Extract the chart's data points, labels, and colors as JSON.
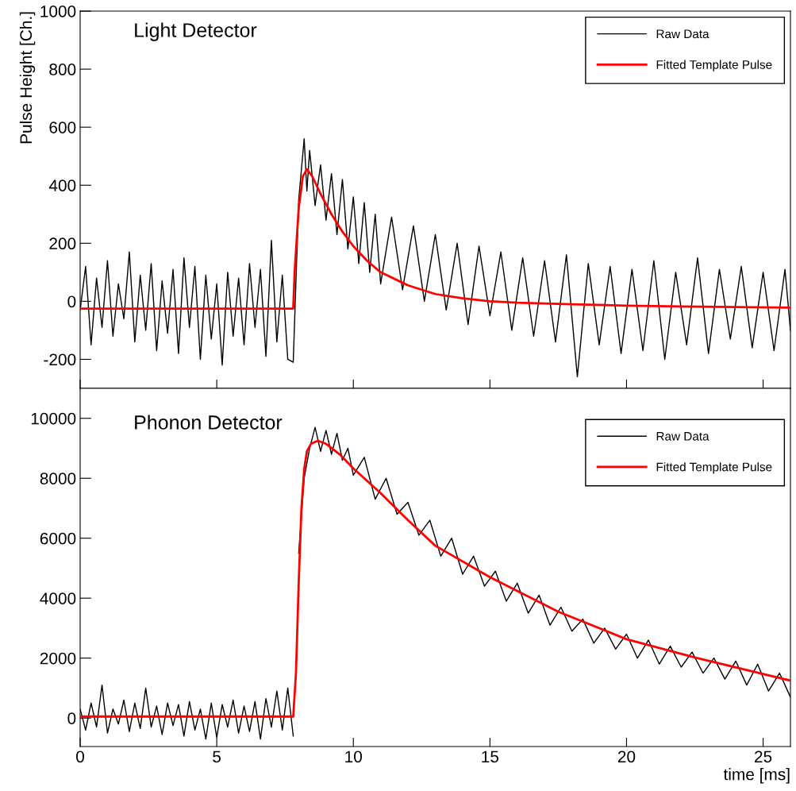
{
  "chart_data": [
    {
      "type": "line",
      "title": "Light Detector",
      "ylabel": "Pulse Height [Ch.]",
      "xlim": [
        0,
        26
      ],
      "xticks": [
        0,
        5,
        10,
        15,
        20,
        25
      ],
      "ylim": [
        -300,
        1000
      ],
      "yticks": [
        -200,
        0,
        200,
        400,
        600,
        800,
        1000
      ],
      "tick_labels": "y",
      "legend": "top right",
      "grid": false,
      "series": [
        {
          "name": "Raw Data",
          "color": "#000000",
          "x": [
            0,
            0.2,
            0.4,
            0.6,
            0.8,
            1.0,
            1.2,
            1.4,
            1.6,
            1.8,
            2.0,
            2.2,
            2.4,
            2.6,
            2.8,
            3.0,
            3.2,
            3.4,
            3.6,
            3.8,
            4.0,
            4.2,
            4.4,
            4.6,
            4.8,
            5.0,
            5.2,
            5.4,
            5.6,
            5.8,
            6.0,
            6.2,
            6.4,
            6.6,
            6.8,
            7.0,
            7.2,
            7.4,
            7.6,
            7.8,
            8.0,
            8.2,
            8.3,
            8.4,
            8.6,
            8.8,
            9.0,
            9.2,
            9.4,
            9.6,
            9.8,
            10.0,
            10.2,
            10.4,
            10.6,
            10.8,
            11.0,
            11.4,
            11.8,
            12.2,
            12.6,
            13.0,
            13.4,
            13.8,
            14.2,
            14.6,
            15.0,
            15.4,
            15.8,
            16.2,
            16.6,
            17.0,
            17.4,
            17.8,
            18.2,
            18.6,
            19.0,
            19.4,
            19.8,
            20.2,
            20.6,
            21.0,
            21.4,
            21.8,
            22.2,
            22.6,
            23.0,
            23.4,
            23.8,
            24.2,
            24.6,
            25.0,
            25.4,
            25.8,
            26.0
          ],
          "values": [
            -30,
            120,
            -150,
            80,
            -90,
            140,
            -120,
            60,
            -60,
            170,
            -140,
            90,
            -100,
            130,
            -170,
            70,
            -110,
            110,
            -180,
            150,
            -90,
            120,
            -200,
            90,
            -130,
            60,
            -220,
            100,
            -120,
            80,
            -150,
            130,
            -90,
            110,
            -190,
            210,
            -140,
            90,
            -200,
            -210,
            350,
            560,
            380,
            520,
            330,
            470,
            280,
            440,
            230,
            420,
            180,
            360,
            130,
            340,
            100,
            300,
            60,
            290,
            40,
            260,
            0,
            230,
            -30,
            200,
            -80,
            190,
            -50,
            170,
            -100,
            150,
            -120,
            140,
            -140,
            160,
            -260,
            130,
            -150,
            120,
            -180,
            110,
            -170,
            140,
            -200,
            100,
            -150,
            150,
            -180,
            110,
            -130,
            120,
            -160,
            100,
            -170,
            110,
            -100
          ]
        },
        {
          "name": "Fitted Template Pulse",
          "color": "#ff0000",
          "x": [
            0,
            7.8,
            7.85,
            8.0,
            8.15,
            8.3,
            8.5,
            8.8,
            9.2,
            9.6,
            10,
            10.5,
            11,
            12,
            13,
            14,
            15,
            16,
            18,
            20,
            22,
            24,
            26
          ],
          "values": [
            -25,
            -25,
            100,
            320,
            430,
            455,
            430,
            370,
            300,
            240,
            190,
            140,
            100,
            55,
            25,
            10,
            0,
            -5,
            -10,
            -15,
            -18,
            -20,
            -22
          ]
        }
      ]
    },
    {
      "type": "line",
      "title": "Phonon Detector",
      "xlabel": "time [ms]",
      "xlim": [
        0,
        26
      ],
      "xticks": [
        0,
        5,
        10,
        15,
        20,
        25
      ],
      "ylim": [
        -950,
        11000
      ],
      "yticks": [
        0,
        2000,
        4000,
        6000,
        8000,
        10000
      ],
      "legend": "top right",
      "grid": false,
      "series": [
        {
          "name": "Raw Data",
          "color": "#000000",
          "x": [
            0,
            0.2,
            0.4,
            0.6,
            0.8,
            1.0,
            1.2,
            1.4,
            1.6,
            1.8,
            2.0,
            2.2,
            2.4,
            2.6,
            2.8,
            3.0,
            3.2,
            3.4,
            3.6,
            3.8,
            4.0,
            4.2,
            4.4,
            4.6,
            4.8,
            5.0,
            5.2,
            5.4,
            5.6,
            5.8,
            6.0,
            6.2,
            6.4,
            6.6,
            6.8,
            7.0,
            7.2,
            7.4,
            7.6,
            7.8,
            7.9,
            8.0,
            8.2,
            8.4,
            8.6,
            8.8,
            9.0,
            9.2,
            9.4,
            9.6,
            9.8,
            10.0,
            10.4,
            10.8,
            11.2,
            11.6,
            12.0,
            12.4,
            12.8,
            13.2,
            13.6,
            14.0,
            14.4,
            14.8,
            15.2,
            15.6,
            16.0,
            16.4,
            16.8,
            17.2,
            17.6,
            18.0,
            18.4,
            18.8,
            19.2,
            19.6,
            20.0,
            20.4,
            20.8,
            21.2,
            21.6,
            22.0,
            22.4,
            22.8,
            23.2,
            23.6,
            24.0,
            24.4,
            24.8,
            25.2,
            25.6,
            26.0
          ],
          "values": [
            300,
            -400,
            500,
            -300,
            1100,
            -500,
            300,
            -200,
            600,
            -450,
            500,
            -350,
            1000,
            -300,
            400,
            -550,
            500,
            -250,
            450,
            -600,
            550,
            -400,
            300,
            -700,
            500,
            -650,
            450,
            -300,
            600,
            -500,
            400,
            -450,
            550,
            -700,
            650,
            -300,
            900,
            -400,
            1000,
            -600,
            null,
            5500,
            8000,
            9000,
            9700,
            8900,
            9600,
            8800,
            9500,
            8600,
            9000,
            8100,
            8700,
            7300,
            8000,
            6800,
            7200,
            6100,
            6600,
            5400,
            6000,
            4800,
            5400,
            4400,
            4900,
            3900,
            4500,
            3500,
            4100,
            3100,
            3700,
            2900,
            3300,
            2500,
            3000,
            2300,
            2800,
            2000,
            2600,
            1800,
            2400,
            1700,
            2200,
            1500,
            2000,
            1300,
            1900,
            1100,
            1800,
            900,
            1500,
            700
          ]
        },
        {
          "name": "Fitted Template Pulse",
          "color": "#ff0000",
          "x": [
            0,
            7.8,
            7.9,
            8.0,
            8.1,
            8.2,
            8.3,
            8.45,
            8.7,
            9.0,
            9.5,
            10,
            11,
            12,
            13,
            15,
            17.5,
            20,
            22.5,
            26
          ],
          "values": [
            50,
            50,
            1500,
            4500,
            7000,
            8300,
            8900,
            9150,
            9250,
            9150,
            8800,
            8330,
            7500,
            6600,
            5750,
            4700,
            3550,
            2630,
            2020,
            1250
          ]
        }
      ]
    }
  ]
}
